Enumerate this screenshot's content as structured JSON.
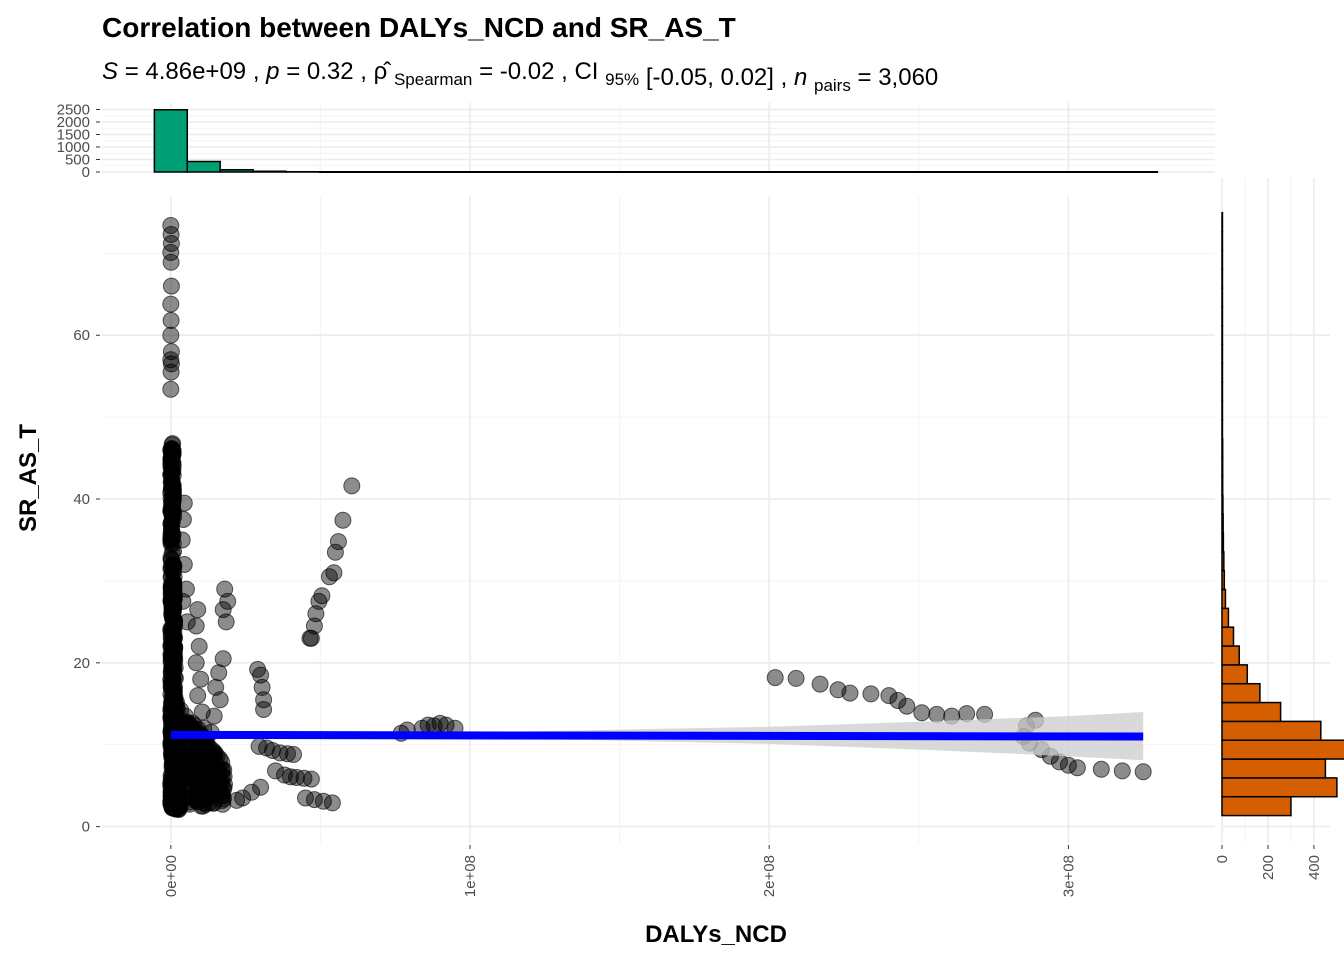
{
  "chart_data": [
    {
      "type": "scatter",
      "title": "Correlation between DALYs_NCD and SR_AS_T",
      "subtitle": {
        "S": "4.86e+09",
        "p": "0.32",
        "rho_label": "Spearman",
        "rho": "-0.02",
        "ci_label": "95%",
        "ci": "[-0.05, 0.02]",
        "n_label": "pairs",
        "n": "3,060"
      },
      "xlabel": "DALYs_NCD",
      "ylabel": "SR_AS_T",
      "xlim": [
        -23000000,
        349000000
      ],
      "ylim": [
        -2,
        77
      ],
      "x_ticks": [
        0,
        100000000,
        200000000,
        300000000
      ],
      "x_tick_labels": [
        "0e+00",
        "1e+08",
        "2e+08",
        "3e+08"
      ],
      "y_ticks": [
        0,
        20,
        40,
        60
      ],
      "y_tick_labels": [
        "0",
        "20",
        "40",
        "60"
      ],
      "grid": true,
      "point_color": "#000000",
      "point_opacity": 0.45,
      "regression_line": {
        "color": "#0000ff",
        "x": [
          0,
          325000000
        ],
        "y": [
          11.2,
          11.0
        ]
      },
      "confidence_band": {
        "color": "#cccccc",
        "x": [
          0,
          20000000,
          50000000,
          100000000,
          150000000,
          200000000,
          250000000,
          300000000,
          325000000
        ],
        "lower": [
          11.1,
          11.0,
          10.95,
          10.8,
          10.5,
          10.1,
          9.4,
          8.6,
          8.1
        ],
        "upper": [
          11.3,
          11.35,
          11.4,
          11.5,
          11.85,
          12.2,
          12.8,
          13.5,
          14.0
        ]
      },
      "dense_cluster": {
        "x_range": [
          0,
          2000000
        ],
        "y_range": [
          2,
          46
        ],
        "count": 600
      },
      "series": [
        {
          "points": [
            [
              0,
              73.4
            ],
            [
              100000,
              72.3
            ],
            [
              200000,
              71.2
            ],
            [
              0,
              70.1
            ],
            [
              100000,
              68.9
            ],
            [
              200000,
              66
            ],
            [
              0,
              63.8
            ],
            [
              100000,
              61.8
            ],
            [
              0,
              60
            ],
            [
              200000,
              58
            ],
            [
              0,
              57
            ],
            [
              100000,
              55.5
            ],
            [
              0,
              53.4
            ],
            [
              200000,
              56.5
            ],
            [
              0,
              46
            ],
            [
              200000,
              45
            ],
            [
              100000,
              44
            ],
            [
              0,
              43
            ],
            [
              300000,
              42
            ],
            [
              100000,
              41
            ],
            [
              200000,
              39.5
            ],
            [
              0,
              38.5
            ],
            [
              100000,
              37
            ],
            [
              200000,
              36
            ],
            [
              0,
              35
            ],
            [
              4500000,
              39.5
            ],
            [
              4200000,
              37.5
            ],
            [
              3800000,
              35
            ],
            [
              4500000,
              32
            ],
            [
              5200000,
              29
            ],
            [
              4000000,
              27.5
            ],
            [
              5500000,
              25
            ],
            [
              9000000,
              26.5
            ],
            [
              8500000,
              24.5
            ],
            [
              9500000,
              22
            ],
            [
              8500000,
              20
            ],
            [
              10000000,
              18
            ],
            [
              9000000,
              16
            ],
            [
              10500000,
              14
            ],
            [
              11000000,
              12
            ],
            [
              10000000,
              10
            ],
            [
              9500000,
              8
            ],
            [
              18000000,
              29
            ],
            [
              19000000,
              27.5
            ],
            [
              17500000,
              26.5
            ],
            [
              18500000,
              25
            ],
            [
              17500000,
              20.5
            ],
            [
              16000000,
              18.8
            ],
            [
              15000000,
              17
            ],
            [
              16500000,
              15.5
            ],
            [
              14500000,
              13.5
            ],
            [
              13500000,
              11.5
            ],
            [
              14500000,
              8
            ],
            [
              15500000,
              6.5
            ],
            [
              16000000,
              5
            ],
            [
              29000000,
              19.2
            ],
            [
              30000000,
              18.5
            ],
            [
              30500000,
              17
            ],
            [
              31000000,
              15.5
            ],
            [
              31000000,
              14.3
            ],
            [
              29500000,
              9.8
            ],
            [
              32000000,
              9.6
            ],
            [
              34000000,
              9.3
            ],
            [
              36500000,
              9
            ],
            [
              39000000,
              8.9
            ],
            [
              41000000,
              8.8
            ],
            [
              35000000,
              6.8
            ],
            [
              30000000,
              4.8
            ],
            [
              27000000,
              4.2
            ],
            [
              24000000,
              3.5
            ],
            [
              22000000,
              3.2
            ],
            [
              38000000,
              6.3
            ],
            [
              40000000,
              6.1
            ],
            [
              42000000,
              6
            ],
            [
              44500000,
              5.9
            ],
            [
              47000000,
              5.8
            ],
            [
              45000000,
              3.5
            ],
            [
              48000000,
              3.3
            ],
            [
              51000000,
              3.1
            ],
            [
              54000000,
              2.9
            ],
            [
              47000000,
              23
            ],
            [
              48000000,
              24.5
            ],
            [
              48500000,
              26
            ],
            [
              49500000,
              27.5
            ],
            [
              50500000,
              28.2
            ],
            [
              53000000,
              30.5
            ],
            [
              54500000,
              31
            ],
            [
              55000000,
              33.5
            ],
            [
              56000000,
              34.8
            ],
            [
              57500000,
              37.4
            ],
            [
              60500000,
              41.6
            ],
            [
              46500000,
              23
            ],
            [
              77000000,
              11.4
            ],
            [
              80000,
              11.7
            ],
            [
              84000000,
              12
            ],
            [
              88000000,
              12.3
            ],
            [
              90000000,
              12.6
            ],
            [
              92000000,
              12.4
            ],
            [
              95000000,
              12
            ],
            [
              86000000,
              12.4
            ],
            [
              79000000,
              11.8
            ],
            [
              202000000,
              18.2
            ],
            [
              209000000,
              18.1
            ],
            [
              217000000,
              17.4
            ],
            [
              223000000,
              16.7
            ],
            [
              227000000,
              16.3
            ],
            [
              234000000,
              16.2
            ],
            [
              240000000,
              16
            ],
            [
              243000000,
              15.4
            ],
            [
              246000000,
              14.7
            ],
            [
              251000000,
              13.9
            ],
            [
              256000000,
              13.7
            ],
            [
              261000000,
              13.5
            ],
            [
              266000000,
              13.8
            ],
            [
              272000000,
              13.7
            ],
            [
              286000000,
              12.3
            ],
            [
              289000000,
              13
            ],
            [
              285000000,
              11
            ],
            [
              287000000,
              10.2
            ],
            [
              291000000,
              9.4
            ],
            [
              294000000,
              8.6
            ],
            [
              297000000,
              7.9
            ],
            [
              300000000,
              7.5
            ],
            [
              303000000,
              7.2
            ],
            [
              311000000,
              7
            ],
            [
              318000000,
              6.8
            ],
            [
              325000000,
              6.7
            ]
          ]
        }
      ]
    },
    {
      "type": "bar",
      "name": "x-marginal-histogram",
      "color": "#009e73",
      "ylim": [
        0,
        2600
      ],
      "y_ticks": [
        0,
        500,
        1000,
        1500,
        2000,
        2500
      ],
      "y_tick_labels": [
        "0",
        "500",
        "1000",
        "1500",
        "2000",
        "2500"
      ],
      "bin_width": 11000000,
      "bin_starts": [
        -5500000,
        5500000,
        16500000,
        27500000,
        38500000
      ],
      "values": [
        2490,
        420,
        90,
        30,
        10
      ],
      "baseline_to": 330000000
    },
    {
      "type": "bar",
      "orientation": "horizontal",
      "name": "y-marginal-histogram",
      "color": "#d55e00",
      "xlim": [
        0,
        470
      ],
      "x_ticks": [
        0,
        200,
        400
      ],
      "x_tick_labels": [
        "0",
        "200",
        "400"
      ],
      "bin_width": 2.3,
      "bin_starts": [
        1.35,
        3.65,
        5.95,
        8.25,
        10.55,
        12.85,
        15.15,
        17.45,
        19.75,
        22.05,
        24.35,
        26.65,
        28.95,
        31.25,
        33.55,
        35.85,
        38.15,
        40.45,
        42.75,
        45.05,
        47.35,
        49.65,
        51.95,
        54.25,
        56.55,
        58.85,
        61.15,
        63.45,
        65.75,
        68.05,
        70.35,
        72.65
      ],
      "values": [
        300,
        500,
        450,
        540,
        430,
        255,
        165,
        110,
        75,
        50,
        28,
        15,
        10,
        8,
        6,
        5,
        4,
        3,
        3,
        3,
        2,
        2,
        2,
        2,
        2,
        2,
        2,
        2,
        2,
        2,
        2,
        2
      ]
    }
  ]
}
